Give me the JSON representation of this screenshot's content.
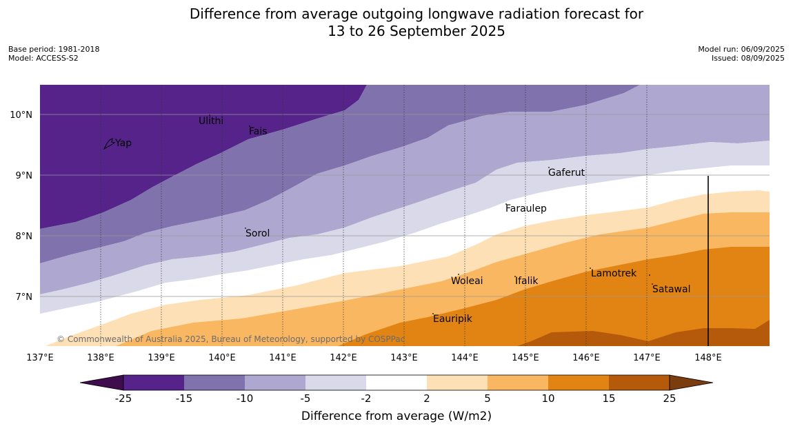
{
  "title": {
    "line1": "Difference from average outgoing longwave radiation forecast for",
    "line2": "13 to 26 September 2025"
  },
  "meta": {
    "base_period": "Base period: 1981-2018",
    "model": "Model: ACCESS-S2",
    "model_run": "Model run: 06/09/2025",
    "issued": "Issued: 08/09/2025"
  },
  "map": {
    "lon_range": [
      137,
      149
    ],
    "lat_range": [
      6.2,
      10.5
    ],
    "lon_ticks": [
      "137°E",
      "138°E",
      "139°E",
      "140°E",
      "141°E",
      "142°E",
      "143°E",
      "144°E",
      "145°E",
      "146°E",
      "147°E",
      "148°E"
    ],
    "lat_ticks": [
      "10°N",
      "9°N",
      "8°N",
      "7°N"
    ],
    "places": [
      {
        "name": "Ulithi",
        "lon": 139.72,
        "lat": 9.9
      },
      {
        "name": "Fais",
        "lon": 140.52,
        "lat": 9.75
      },
      {
        "name": "Yap",
        "lon": 138.13,
        "lat": 9.52
      },
      {
        "name": "Gaferut",
        "lon": 145.38,
        "lat": 9.23
      },
      {
        "name": "Faraulep",
        "lon": 144.52,
        "lat": 8.6
      },
      {
        "name": "Sorol",
        "lon": 140.38,
        "lat": 8.13
      },
      {
        "name": "Woleai",
        "lon": 143.91,
        "lat": 7.35
      },
      {
        "name": "Ifalik",
        "lon": 144.44,
        "lat": 7.25
      },
      {
        "name": "Lamotrek",
        "lon": 146.37,
        "lat": 7.47
      },
      {
        "name": "Satawal",
        "lon": 147.03,
        "lat": 7.35
      },
      {
        "name": "Eauripik",
        "lon": 143.08,
        "lat": 6.68
      }
    ],
    "copyright": "© Commonwealth of Australia 2025, Bureau of Meteorology, supported by COSPPac"
  },
  "colorbar": {
    "title": "Difference from average (W/m2)",
    "ticks": [
      "-25",
      "-15",
      "-10",
      "-5",
      "-2",
      "2",
      "5",
      "10",
      "15",
      "25"
    ],
    "colors": [
      "#3f0d4d",
      "#55238a",
      "#7f72ad",
      "#aea8d0",
      "#d9d9ea",
      "#ffffff",
      "#fde0b5",
      "#fab762",
      "#e28414",
      "#b45a0a",
      "#7b3d0d"
    ]
  }
}
